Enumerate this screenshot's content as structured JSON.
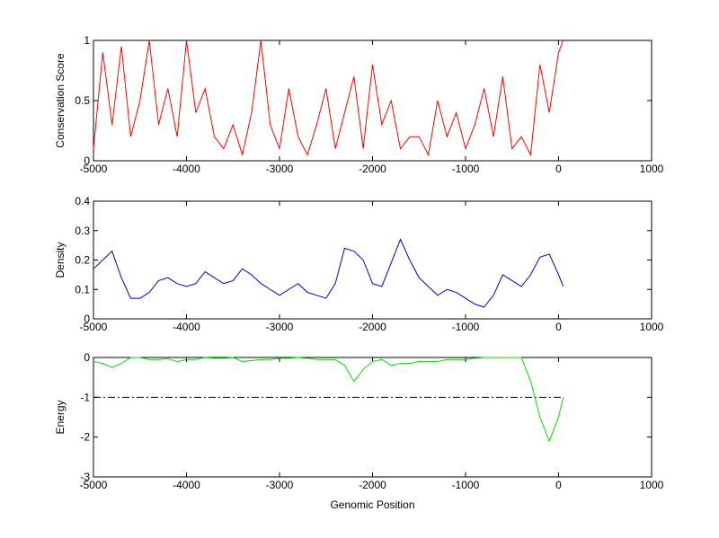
{
  "chart_data": [
    {
      "type": "line",
      "ylabel": "Conservation Score",
      "x": [
        -5000,
        -4900,
        -4800,
        -4700,
        -4600,
        -4500,
        -4400,
        -4300,
        -4200,
        -4100,
        -4000,
        -3900,
        -3800,
        -3700,
        -3600,
        -3500,
        -3400,
        -3300,
        -3200,
        -3100,
        -3000,
        -2900,
        -2800,
        -2700,
        -2600,
        -2500,
        -2400,
        -2300,
        -2200,
        -2100,
        -2000,
        -1900,
        -1800,
        -1700,
        -1600,
        -1500,
        -1400,
        -1300,
        -1200,
        -1100,
        -1000,
        -900,
        -800,
        -700,
        -600,
        -500,
        -400,
        -300,
        -200,
        -100,
        0,
        50
      ],
      "values": [
        0.1,
        0.9,
        0.3,
        0.95,
        0.2,
        0.5,
        1,
        0.3,
        0.6,
        0.2,
        1,
        0.4,
        0.6,
        0.2,
        0.1,
        0.3,
        0.05,
        0.4,
        1,
        0.3,
        0.1,
        0.6,
        0.2,
        0.05,
        0.3,
        0.6,
        0.1,
        0.4,
        0.7,
        0.1,
        0.8,
        0.3,
        0.5,
        0.1,
        0.2,
        0.2,
        0.05,
        0.5,
        0.2,
        0.4,
        0.1,
        0.3,
        0.6,
        0.2,
        0.7,
        0.1,
        0.2,
        0.05,
        0.8,
        0.4,
        0.9,
        1
      ],
      "color": "#ff0000",
      "xlim": [
        -5000,
        1000
      ],
      "xticks": [
        -5000,
        -4000,
        -3000,
        -2000,
        -1000,
        0,
        1000
      ],
      "ylim": [
        0,
        1
      ],
      "yticks": [
        0,
        0.5,
        1
      ]
    },
    {
      "type": "line",
      "ylabel": "Density",
      "x": [
        -5000,
        -4900,
        -4800,
        -4700,
        -4600,
        -4500,
        -4400,
        -4300,
        -4200,
        -4100,
        -4000,
        -3900,
        -3800,
        -3700,
        -3600,
        -3500,
        -3400,
        -3300,
        -3200,
        -3100,
        -3000,
        -2900,
        -2800,
        -2700,
        -2600,
        -2500,
        -2400,
        -2300,
        -2200,
        -2100,
        -2000,
        -1900,
        -1800,
        -1700,
        -1600,
        -1500,
        -1400,
        -1300,
        -1200,
        -1100,
        -1000,
        -900,
        -800,
        -700,
        -600,
        -500,
        -400,
        -300,
        -200,
        -100,
        0,
        50
      ],
      "values": [
        0.17,
        0.2,
        0.23,
        0.14,
        0.07,
        0.07,
        0.09,
        0.13,
        0.14,
        0.12,
        0.11,
        0.12,
        0.16,
        0.14,
        0.12,
        0.13,
        0.17,
        0.15,
        0.12,
        0.1,
        0.08,
        0.1,
        0.12,
        0.09,
        0.08,
        0.07,
        0.12,
        0.24,
        0.23,
        0.2,
        0.12,
        0.11,
        0.19,
        0.27,
        0.2,
        0.14,
        0.11,
        0.08,
        0.1,
        0.09,
        0.07,
        0.05,
        0.04,
        0.08,
        0.15,
        0.13,
        0.11,
        0.15,
        0.21,
        0.22,
        0.15,
        0.11
      ],
      "color": "#0000cc",
      "xlim": [
        -5000,
        1000
      ],
      "xticks": [
        -5000,
        -4000,
        -3000,
        -2000,
        -1000,
        0,
        1000
      ],
      "ylim": [
        0,
        0.4
      ],
      "yticks": [
        0,
        0.1,
        0.2,
        0.3,
        0.4
      ]
    },
    {
      "type": "line",
      "ylabel": "Energy",
      "xlabel": "Genomic Position",
      "x": [
        -5000,
        -4900,
        -4800,
        -4700,
        -4600,
        -4500,
        -4400,
        -4300,
        -4200,
        -4100,
        -4000,
        -3900,
        -3800,
        -3700,
        -3600,
        -3500,
        -3400,
        -3300,
        -3200,
        -3100,
        -3000,
        -2900,
        -2800,
        -2700,
        -2600,
        -2500,
        -2400,
        -2300,
        -2200,
        -2100,
        -2000,
        -1900,
        -1800,
        -1700,
        -1600,
        -1500,
        -1400,
        -1300,
        -1200,
        -1100,
        -1000,
        -900,
        -800,
        -700,
        -600,
        -500,
        -400,
        -300,
        -200,
        -100,
        0,
        50
      ],
      "values": [
        -0.1,
        -0.15,
        -0.25,
        -0.15,
        0,
        0,
        -0.05,
        -0.05,
        -0.03,
        -0.1,
        -0.05,
        -0.05,
        0,
        -0.02,
        -0.02,
        0,
        -0.1,
        -0.08,
        -0.05,
        -0.05,
        -0.02,
        -0.02,
        0,
        -0.02,
        -0.05,
        -0.05,
        -0.05,
        -0.2,
        -0.6,
        -0.3,
        -0.1,
        -0.05,
        -0.2,
        -0.15,
        -0.15,
        -0.1,
        -0.1,
        -0.1,
        -0.05,
        -0.05,
        -0.05,
        -0.02,
        0,
        0,
        0,
        0,
        0,
        -0.6,
        -1.5,
        -2.1,
        -1.5,
        -1
      ],
      "color": "#00dd00",
      "hline": -1,
      "xlim": [
        -5000,
        1000
      ],
      "xticks": [
        -5000,
        -4000,
        -3000,
        -2000,
        -1000,
        0,
        1000
      ],
      "ylim": [
        -3,
        0
      ],
      "yticks": [
        -3,
        -2,
        -1,
        0
      ]
    }
  ]
}
